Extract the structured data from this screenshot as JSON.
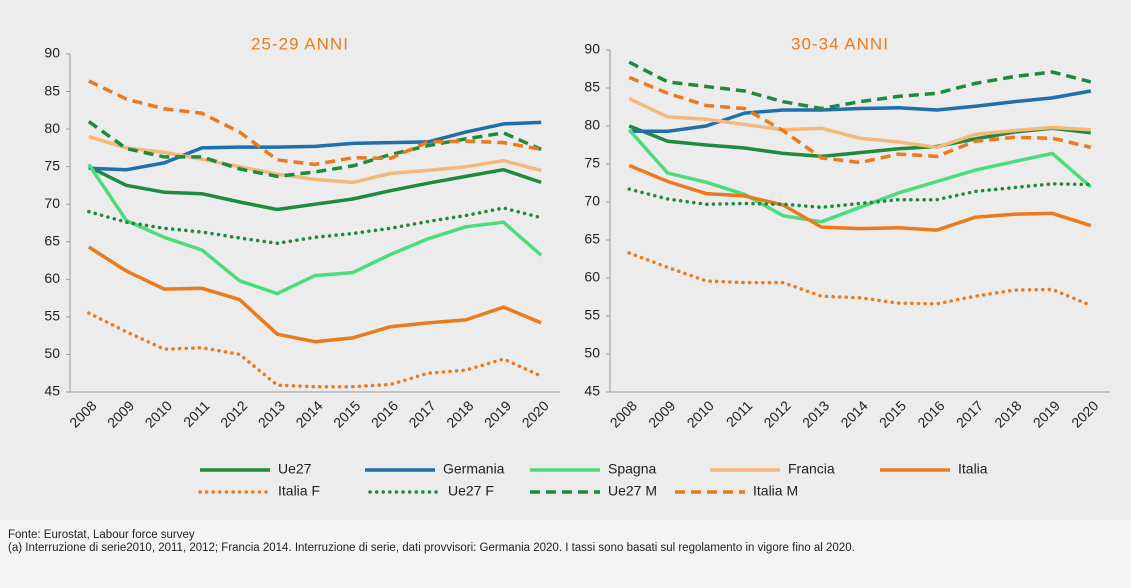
{
  "chart_data": [
    {
      "type": "line",
      "title": "25-29 ANNI",
      "categories": [
        "2008",
        "2009",
        "2010",
        "2011",
        "2012",
        "2013",
        "2014",
        "2015",
        "2016",
        "2017",
        "2018",
        "2019",
        "2020"
      ],
      "ylim": [
        45,
        90
      ],
      "yticks": [
        45,
        50,
        55,
        60,
        65,
        70,
        75,
        80,
        85,
        90
      ],
      "series": [
        {
          "name": "Ue27",
          "color": "#1e8a3e",
          "dash": "solid",
          "values": [
            75,
            72.5,
            71.6,
            71.4,
            70.3,
            69.3,
            70,
            70.7,
            71.8,
            72.8,
            73.7,
            74.6,
            72.9
          ]
        },
        {
          "name": "Germania",
          "color": "#1f6fad",
          "dash": "solid",
          "values": [
            74.8,
            74.6,
            75.5,
            77.5,
            77.6,
            77.6,
            77.7,
            78.1,
            78.2,
            78.3,
            79.6,
            80.7,
            80.9
          ]
        },
        {
          "name": "Spagna",
          "color": "#4ddc7c",
          "dash": "solid",
          "values": [
            75.3,
            67.8,
            65.6,
            63.9,
            59.8,
            58.1,
            60.5,
            60.9,
            63.3,
            65.4,
            67,
            67.6,
            63.2
          ]
        },
        {
          "name": "Francia",
          "color": "#f5b87a",
          "dash": "solid",
          "values": [
            79,
            77.5,
            76.9,
            76,
            75,
            74,
            73.3,
            72.9,
            74.1,
            74.5,
            75,
            75.8,
            74.5
          ]
        },
        {
          "name": "Italia",
          "color": "#ec7a1c",
          "dash": "solid",
          "values": [
            64.3,
            61.1,
            58.7,
            58.8,
            57.3,
            52.7,
            51.7,
            52.2,
            53.7,
            54.2,
            54.6,
            56.3,
            54.2
          ]
        },
        {
          "name": "Italia F",
          "color": "#ec7a1c",
          "dash": "dotted",
          "values": [
            55.5,
            53,
            50.7,
            50.9,
            50,
            45.9,
            45.7,
            45.7,
            46,
            47.5,
            47.9,
            49.4,
            47.1
          ]
        },
        {
          "name": "Ue27 F",
          "color": "#1e8a3e",
          "dash": "dotted",
          "values": [
            69,
            67.6,
            66.8,
            66.3,
            65.5,
            64.8,
            65.6,
            66.1,
            66.8,
            67.7,
            68.5,
            69.5,
            68.2
          ]
        },
        {
          "name": "Ue27 M",
          "color": "#1e8a3e",
          "dash": "dashed",
          "values": [
            81,
            77.4,
            76.3,
            76.3,
            74.7,
            73.7,
            74.3,
            75.1,
            76.6,
            77.8,
            78.7,
            79.5,
            77.3
          ]
        },
        {
          "name": "Italia M",
          "color": "#ec7a1c",
          "dash": "dashed",
          "values": [
            86.4,
            84,
            82.7,
            82.1,
            79.6,
            75.9,
            75.3,
            76.2,
            76.1,
            78.3,
            78.4,
            78.2,
            77.3
          ]
        }
      ]
    },
    {
      "type": "line",
      "title": "30-34 ANNI",
      "categories": [
        "2008",
        "2009",
        "2010",
        "2011",
        "2012",
        "2013",
        "2014",
        "2015",
        "2016",
        "2017",
        "2018",
        "2019",
        "2020"
      ],
      "ylim": [
        45,
        90
      ],
      "yticks": [
        45,
        50,
        55,
        60,
        65,
        70,
        75,
        80,
        85,
        90
      ],
      "series": [
        {
          "name": "Ue27",
          "color": "#1e8a3e",
          "dash": "solid",
          "values": [
            80,
            78,
            77.5,
            77.1,
            76.4,
            76,
            76.5,
            77,
            77.3,
            78.3,
            79.2,
            79.7,
            79.1
          ]
        },
        {
          "name": "Germania",
          "color": "#1f6fad",
          "dash": "solid",
          "values": [
            79.3,
            79.3,
            80,
            81.7,
            82.1,
            82.1,
            82.3,
            82.4,
            82.1,
            82.6,
            83.2,
            83.7,
            84.6
          ]
        },
        {
          "name": "Spagna",
          "color": "#4ddc7c",
          "dash": "solid",
          "values": [
            79.5,
            73.8,
            72.6,
            71,
            68.2,
            67.4,
            69.3,
            71.2,
            72.7,
            74.2,
            75.3,
            76.4,
            72
          ]
        },
        {
          "name": "Francia",
          "color": "#f5b87a",
          "dash": "solid",
          "values": [
            83.6,
            81.2,
            80.9,
            80.2,
            79.5,
            79.7,
            78.4,
            77.9,
            77.2,
            78.9,
            79.4,
            79.8,
            79.5
          ]
        },
        {
          "name": "Italia",
          "color": "#ec7a1c",
          "dash": "solid",
          "values": [
            74.8,
            72.7,
            71.1,
            70.8,
            69.6,
            66.7,
            66.5,
            66.6,
            66.3,
            68,
            68.4,
            68.5,
            66.9
          ]
        },
        {
          "name": "Italia F",
          "color": "#ec7a1c",
          "dash": "dotted",
          "values": [
            63.3,
            61.4,
            59.6,
            59.4,
            59.4,
            57.6,
            57.4,
            56.7,
            56.6,
            57.6,
            58.4,
            58.5,
            56.4
          ]
        },
        {
          "name": "Ue27 F",
          "color": "#1e8a3e",
          "dash": "dotted",
          "values": [
            71.7,
            70.4,
            69.7,
            69.8,
            69.7,
            69.3,
            69.8,
            70.3,
            70.3,
            71.4,
            71.9,
            72.4,
            72.3
          ]
        },
        {
          "name": "Ue27 M",
          "color": "#1e8a3e",
          "dash": "dashed",
          "values": [
            88.4,
            85.8,
            85.2,
            84.6,
            83.2,
            82.3,
            83.2,
            83.9,
            84.3,
            85.6,
            86.5,
            87.1,
            85.8
          ]
        },
        {
          "name": "Italia M",
          "color": "#ec7a1c",
          "dash": "dashed",
          "values": [
            86.4,
            84.3,
            82.7,
            82.3,
            79.4,
            75.8,
            75.2,
            76.3,
            76,
            78,
            78.5,
            78.4,
            77.2
          ]
        }
      ]
    }
  ],
  "footer": {
    "source": "Fonte: Eurostat, Labour force survey",
    "note": "(a) Interruzione di serie2010, 2011, 2012; Francia 2014. Interruzione di serie, dati provvisori: Germania 2020. I tassi sono basati sul regolamento in vigore fino al 2020."
  }
}
